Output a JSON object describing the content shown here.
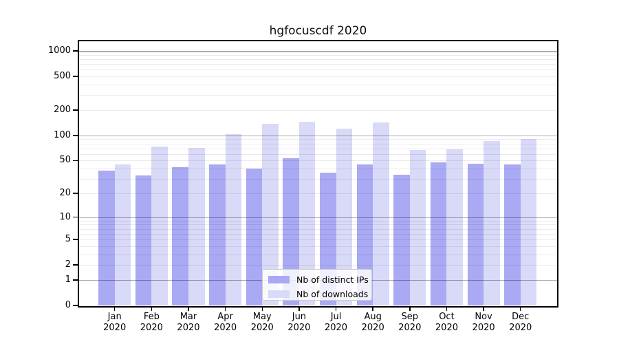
{
  "chart_data": {
    "type": "bar",
    "title": "hgfocuscdf 2020",
    "categories": [
      "Jan",
      "Feb",
      "Mar",
      "Apr",
      "May",
      "Jun",
      "Jul",
      "Aug",
      "Sep",
      "Oct",
      "Nov",
      "Dec"
    ],
    "year": "2020",
    "series": [
      {
        "name": "Nb of distinct IPs",
        "color": "#a9a9f4",
        "values": [
          38,
          33,
          42,
          45,
          40,
          53,
          36,
          45,
          34,
          48,
          46,
          45
        ]
      },
      {
        "name": "Nb of downloads",
        "color": "#d9d9f8",
        "values": [
          45,
          74,
          71,
          104,
          138,
          146,
          120,
          142,
          67,
          68,
          86,
          90
        ]
      }
    ],
    "yscale": "log1p",
    "ylim": [
      0,
      1300
    ],
    "yticks": [
      1000,
      500,
      200,
      100,
      50,
      20,
      10,
      5,
      2,
      1,
      0
    ],
    "grid": true,
    "legend_position": "bottom-center"
  }
}
